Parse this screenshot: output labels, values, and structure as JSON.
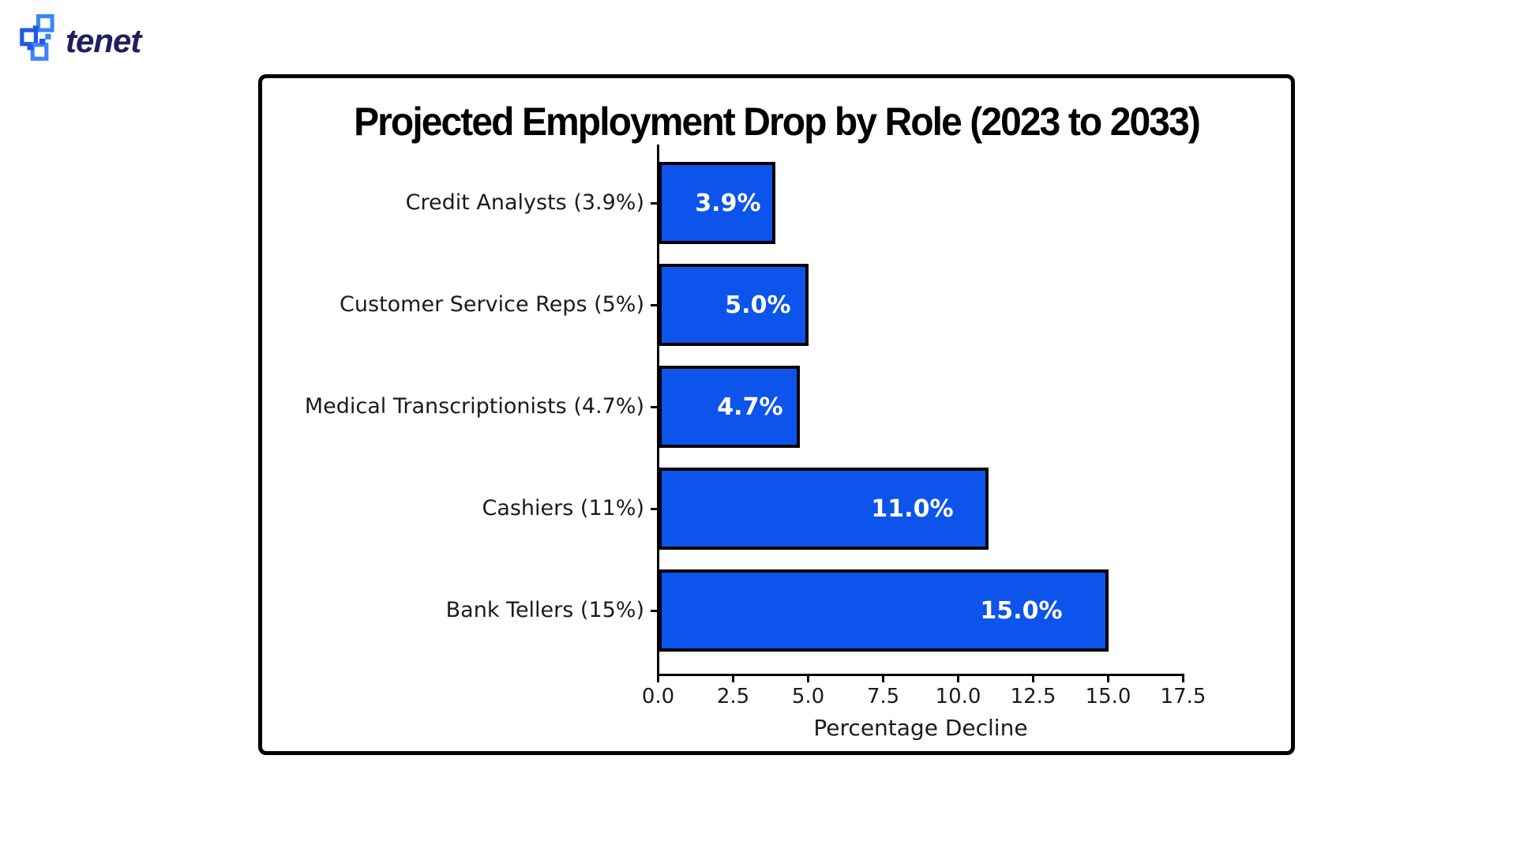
{
  "logo": {
    "text": "tenet",
    "wordmark_color": "#211f5e",
    "icon_color_light": "#3f86f5",
    "icon_color_dark": "#2257e8"
  },
  "chart_data": {
    "type": "bar",
    "orientation": "horizontal",
    "title": "Projected Employment Drop by Role (2023 to 2033)",
    "categories": [
      "Credit Analysts (3.9%)",
      "Customer Service Reps (5%)",
      "Medical Transcriptionists (4.7%)",
      "Cashiers (11%)",
      "Bank Tellers (15%)"
    ],
    "values": [
      3.9,
      5.0,
      4.7,
      11.0,
      15.0
    ],
    "bar_value_labels": [
      "3.9%",
      "5.0%",
      "4.7%",
      "11.0%",
      "15.0%"
    ],
    "xlabel": "Percentage Decline",
    "x_tick_values": [
      0.0,
      2.5,
      5.0,
      7.5,
      10.0,
      12.5,
      15.0,
      17.5
    ],
    "x_tick_labels": [
      "0.0",
      "2.5",
      "5.0",
      "7.5",
      "10.0",
      "12.5",
      "15.0",
      "17.5"
    ],
    "xlim": [
      0,
      17.5
    ],
    "grid": false,
    "legend": "none",
    "bar_color": "#0d54ec",
    "bar_edge_color": "#000000",
    "value_label_color": "#ffffff",
    "frame_border_color": "#000000"
  }
}
